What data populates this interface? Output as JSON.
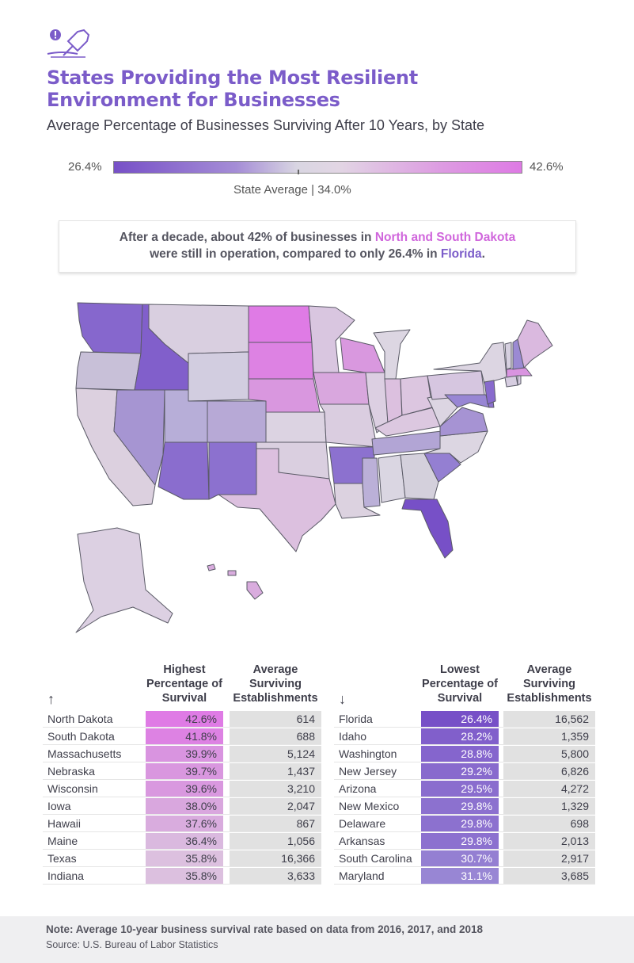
{
  "header": {
    "title": "States Providing the Most Resilient Environment for Businesses",
    "subtitle": "Average Percentage of Businesses Surviving After 10 Years, by State"
  },
  "legend": {
    "min_label": "26.4%",
    "max_label": "42.6%",
    "average_label": "State Average | 34.0%",
    "min_value": 26.4,
    "max_value": 42.6,
    "average_value": 34.0
  },
  "callout": {
    "text_1": "After a decade, about ",
    "bold_pct": "42%",
    "text_2": " of businesses in ",
    "highlight_1": "North and South Dakota",
    "text_3": "were still in operation, compared to only ",
    "bold_pct_2": "26.4%",
    "text_4": " in ",
    "highlight_2": "Florida",
    "text_5": "."
  },
  "colors": {
    "accent_purple": "#7b5cc9",
    "accent_pink": "#d066dc",
    "scale_low": "#7750c7",
    "scale_mid": "#dcd6e0",
    "scale_high": "#de7ae4"
  },
  "highest_table": {
    "arrow": "↑",
    "col_pct": "Highest Percentage of Survival",
    "col_est": "Average Surviving Establishments",
    "rows": [
      {
        "state": "North Dakota",
        "pct": "42.6%",
        "est": "614",
        "color": "#df7be5"
      },
      {
        "state": "South Dakota",
        "pct": "41.8%",
        "est": "688",
        "color": "#dd82e3"
      },
      {
        "state": "Massachusetts",
        "pct": "39.9%",
        "est": "5,124",
        "color": "#d994e0"
      },
      {
        "state": "Nebraska",
        "pct": "39.7%",
        "est": "1,437",
        "color": "#d997df"
      },
      {
        "state": "Wisconsin",
        "pct": "39.6%",
        "est": "3,210",
        "color": "#d998df"
      },
      {
        "state": "Iowa",
        "pct": "38.0%",
        "est": "2,047",
        "color": "#d9a7de"
      },
      {
        "state": "Hawaii",
        "pct": "37.6%",
        "est": "867",
        "color": "#d9acde"
      },
      {
        "state": "Maine",
        "pct": "36.4%",
        "est": "1,056",
        "color": "#dab9df"
      },
      {
        "state": "Texas",
        "pct": "35.8%",
        "est": "16,366",
        "color": "#dcc0df"
      },
      {
        "state": "Indiana",
        "pct": "35.8%",
        "est": "3,633",
        "color": "#dcc0df"
      }
    ]
  },
  "lowest_table": {
    "arrow": "↓",
    "col_pct": "Lowest Percentage of Survival",
    "col_est": "Average Surviving Establishments",
    "rows": [
      {
        "state": "Florida",
        "pct": "26.4%",
        "est": "16,562",
        "color": "#7750c7"
      },
      {
        "state": "Idaho",
        "pct": "28.2%",
        "est": "1,359",
        "color": "#815fcb"
      },
      {
        "state": "Washington",
        "pct": "28.8%",
        "est": "5,800",
        "color": "#8565cd"
      },
      {
        "state": "New Jersey",
        "pct": "29.2%",
        "est": "6,826",
        "color": "#886acd"
      },
      {
        "state": "Arizona",
        "pct": "29.5%",
        "est": "4,272",
        "color": "#8a6dce"
      },
      {
        "state": "New Mexico",
        "pct": "29.8%",
        "est": "1,329",
        "color": "#8c71cf"
      },
      {
        "state": "Delaware",
        "pct": "29.8%",
        "est": "698",
        "color": "#8c71cf"
      },
      {
        "state": "Arkansas",
        "pct": "29.8%",
        "est": "2,013",
        "color": "#8c71cf"
      },
      {
        "state": "South Carolina",
        "pct": "30.7%",
        "est": "2,917",
        "color": "#947fd2"
      },
      {
        "state": "Maryland",
        "pct": "31.1%",
        "est": "3,685",
        "color": "#9886d4"
      }
    ]
  },
  "footer": {
    "note": "Note: Average 10-year business survival rate based on data from 2016, 2017, and 2018",
    "source": "Source: U.S. Bureau of Labor Statistics"
  }
}
